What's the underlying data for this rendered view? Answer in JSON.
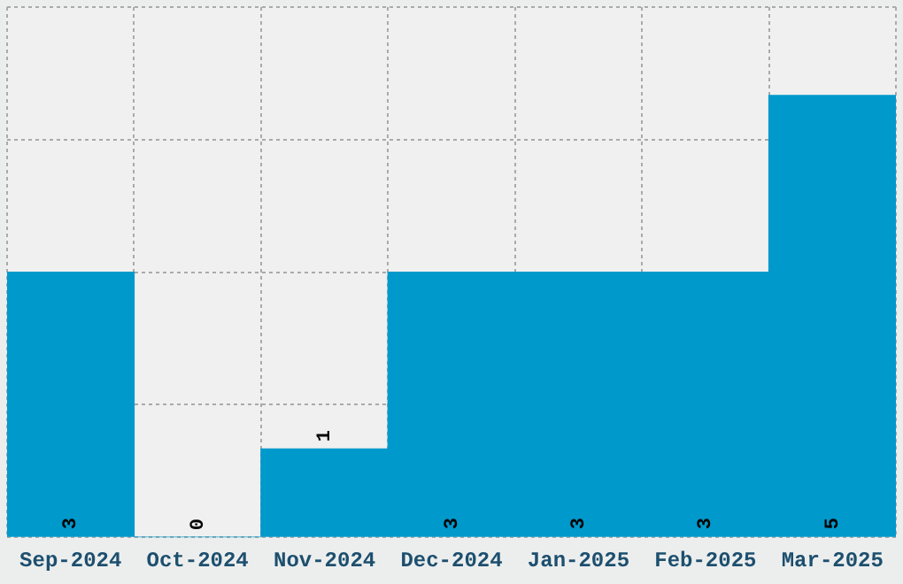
{
  "chart_data": {
    "type": "bar",
    "categories": [
      "Sep-2024",
      "Oct-2024",
      "Nov-2024",
      "Dec-2024",
      "Jan-2025",
      "Feb-2025",
      "Mar-2025"
    ],
    "values": [
      3,
      0,
      1,
      3,
      3,
      3,
      5
    ],
    "color": "#0099cc",
    "data_labels": true,
    "grid": true,
    "tick_labels": "x"
  }
}
